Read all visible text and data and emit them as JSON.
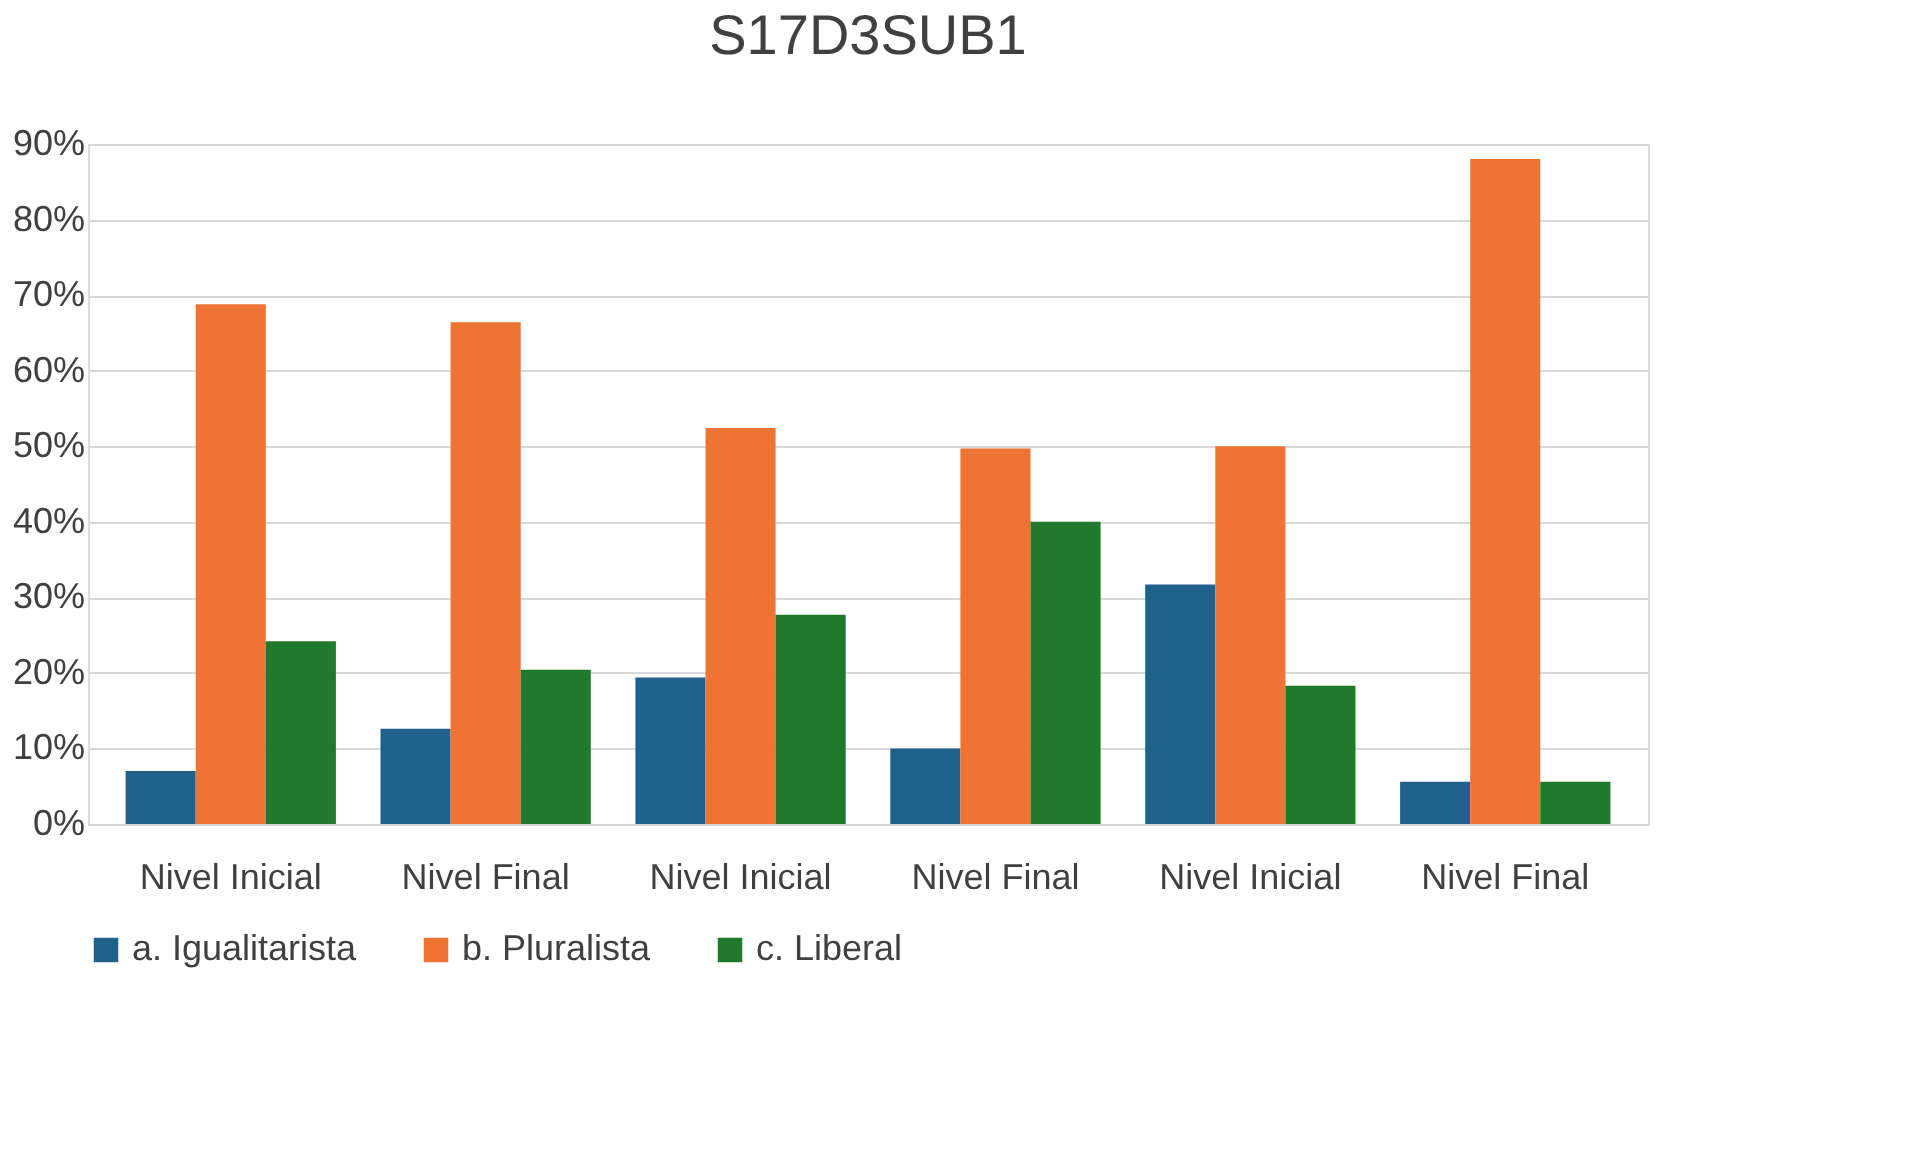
{
  "chart_data": {
    "type": "bar",
    "title": "S17D3SUB1",
    "categories": [
      "Nivel Inicial",
      "Nivel Final",
      "Nivel Inicial",
      "Nivel Final",
      "Nivel Inicial",
      "Nivel Final"
    ],
    "series": [
      {
        "name": "a. Igualitarista",
        "color": "#1f618b",
        "values": [
          7,
          12.6,
          19.4,
          10,
          31.7,
          5.6
        ]
      },
      {
        "name": "b. Pluralista",
        "color": "#ed7432",
        "values": [
          68.8,
          66.4,
          52.4,
          49.7,
          50,
          88
        ]
      },
      {
        "name": "c. Liberal",
        "color": "#1f7a2e",
        "values": [
          24.2,
          20.4,
          27.7,
          40,
          18.3,
          5.6
        ]
      }
    ],
    "ylim": [
      0,
      90
    ],
    "yticks": [
      {
        "value": 0,
        "label": "0%"
      },
      {
        "value": 10,
        "label": "10%"
      },
      {
        "value": 20,
        "label": "20%"
      },
      {
        "value": 30,
        "label": "30%"
      },
      {
        "value": 40,
        "label": "40%"
      },
      {
        "value": 50,
        "label": "50%"
      },
      {
        "value": 60,
        "label": "60%"
      },
      {
        "value": 70,
        "label": "70%"
      },
      {
        "value": 80,
        "label": "80%"
      },
      {
        "value": 90,
        "label": "90%"
      }
    ],
    "grid": "y",
    "legend": "bottom"
  }
}
